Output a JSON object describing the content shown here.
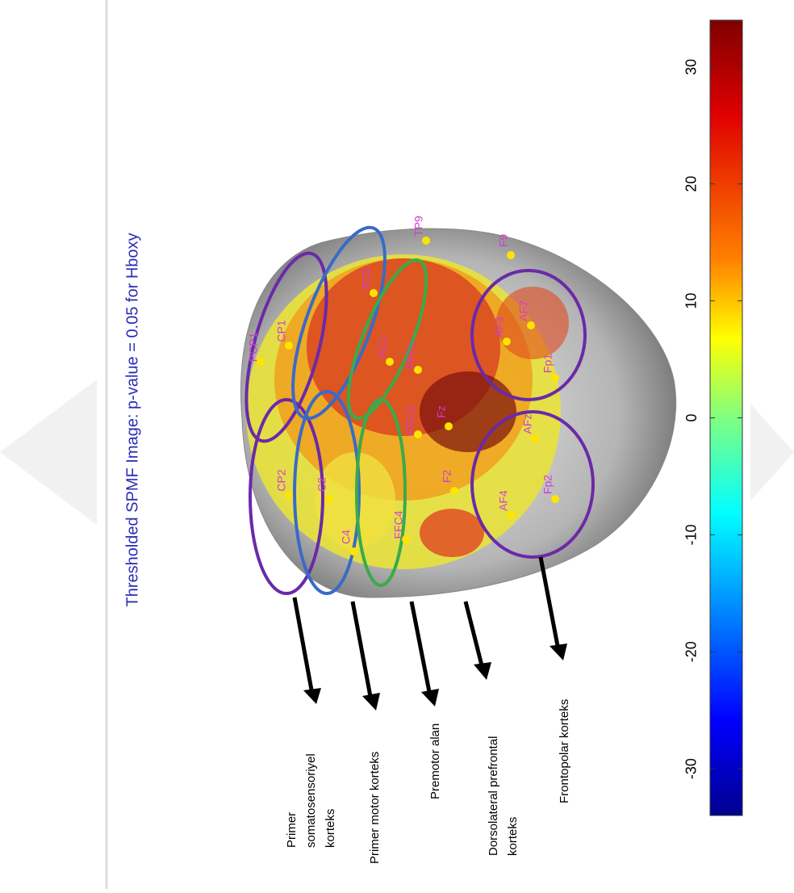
{
  "title": "Thresholded SPMF Image: p-value = 0.05  for Hboxy",
  "colorbar": {
    "lim": [
      -34,
      34
    ],
    "ticks": [
      30,
      20,
      10,
      0,
      -10,
      -20,
      -30
    ]
  },
  "electrodes": [
    "FC1",
    "FFC1",
    "FFC2",
    "Fz",
    "F2",
    "AF7",
    "AF3",
    "AF4",
    "AFz",
    "Fp1",
    "Fp2",
    "F9",
    "TP9",
    "CP1",
    "CP2",
    "C2",
    "C4",
    "PCP1",
    "FC5",
    "FFC4"
  ],
  "annotations": [
    {
      "lines": [
        "Primer",
        "somatosensoriyel",
        "korteks"
      ]
    },
    {
      "lines": [
        "Primer motor korteks"
      ]
    },
    {
      "lines": [
        "Premotor alan"
      ]
    },
    {
      "lines": [
        "Dorsolateral prefrontal",
        "korteks"
      ]
    },
    {
      "lines": [
        "Frontopolar korteks"
      ]
    }
  ]
}
